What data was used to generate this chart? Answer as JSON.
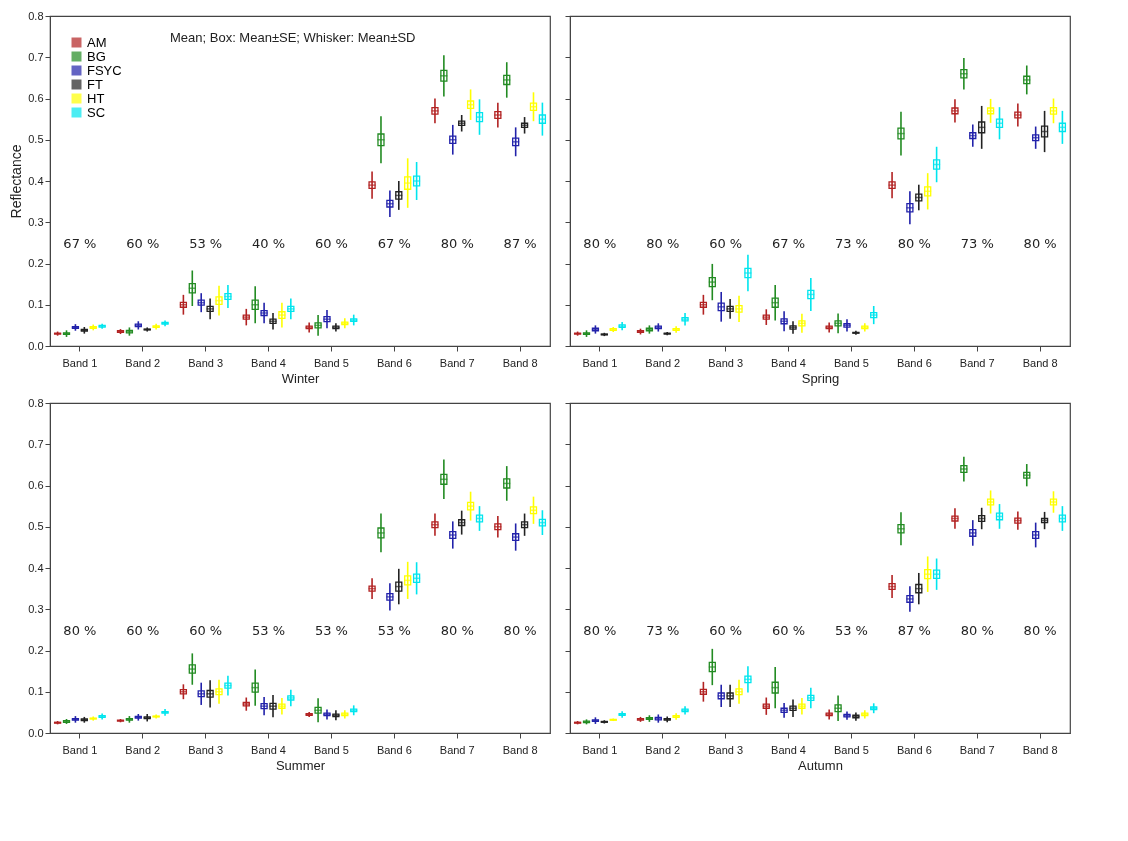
{
  "chart_data": [
    {
      "type": "box",
      "xlabel": "Winter",
      "ylabel": "Reflectance",
      "categories": [
        "Band 1",
        "Band 2",
        "Band 3",
        "Band 4",
        "Band 5",
        "Band 6",
        "Band 7",
        "Band 8"
      ],
      "ylim": [
        0,
        0.8
      ],
      "yticks": [
        {
          "value": 0,
          "label": "0.0"
        },
        0.1,
        0.2,
        0.3,
        0.4,
        0.5,
        0.6,
        0.7,
        0.8
      ],
      "grid": false,
      "legend": "top left",
      "subtitle": "Mean; Box: Mean±SE; Whisker: Mean±SD",
      "annotations": [
        "67 %",
        "60 %",
        "53 %",
        "40 %",
        "60 %",
        "67 %",
        "80 %",
        "87 %"
      ],
      "series": [
        {
          "name": "AM",
          "color": "#b22222",
          "boxes": [
            {
              "low": 0.025,
              "q1": 0.029,
              "median": 0.03,
              "q3": 0.031,
              "high": 0.035
            },
            {
              "low": 0.029,
              "q1": 0.033,
              "median": 0.035,
              "q3": 0.037,
              "high": 0.041
            },
            {
              "low": 0.076,
              "q1": 0.094,
              "median": 0.1,
              "q3": 0.106,
              "high": 0.124
            },
            {
              "low": 0.05,
              "q1": 0.065,
              "median": 0.07,
              "q3": 0.075,
              "high": 0.09
            },
            {
              "low": 0.033,
              "q1": 0.042,
              "median": 0.045,
              "q3": 0.048,
              "high": 0.057
            },
            {
              "low": 0.357,
              "q1": 0.382,
              "median": 0.39,
              "q3": 0.398,
              "high": 0.423
            },
            {
              "low": 0.54,
              "q1": 0.562,
              "median": 0.57,
              "q3": 0.578,
              "high": 0.6
            },
            {
              "low": 0.53,
              "q1": 0.552,
              "median": 0.56,
              "q3": 0.568,
              "high": 0.59
            }
          ]
        },
        {
          "name": "BG",
          "color": "#228b22",
          "boxes": [
            {
              "low": 0.022,
              "q1": 0.028,
              "median": 0.03,
              "q3": 0.032,
              "high": 0.038
            },
            {
              "low": 0.025,
              "q1": 0.032,
              "median": 0.035,
              "q3": 0.038,
              "high": 0.045
            },
            {
              "low": 0.097,
              "q1": 0.129,
              "median": 0.14,
              "q3": 0.151,
              "high": 0.183
            },
            {
              "low": 0.055,
              "q1": 0.089,
              "median": 0.1,
              "q3": 0.111,
              "high": 0.145
            },
            {
              "low": 0.025,
              "q1": 0.044,
              "median": 0.05,
              "q3": 0.056,
              "high": 0.075
            },
            {
              "low": 0.443,
              "q1": 0.486,
              "median": 0.5,
              "q3": 0.514,
              "high": 0.557
            },
            {
              "low": 0.605,
              "q1": 0.642,
              "median": 0.655,
              "q3": 0.668,
              "high": 0.705
            },
            {
              "low": 0.602,
              "q1": 0.634,
              "median": 0.645,
              "q3": 0.656,
              "high": 0.688
            }
          ]
        },
        {
          "name": "FSYC",
          "color": "#2222aa",
          "boxes": [
            {
              "low": 0.037,
              "q1": 0.043,
              "median": 0.045,
              "q3": 0.047,
              "high": 0.053
            },
            {
              "low": 0.04,
              "q1": 0.047,
              "median": 0.05,
              "q3": 0.053,
              "high": 0.06
            },
            {
              "low": 0.082,
              "q1": 0.099,
              "median": 0.105,
              "q3": 0.111,
              "high": 0.128
            },
            {
              "low": 0.055,
              "q1": 0.074,
              "median": 0.08,
              "q3": 0.086,
              "high": 0.105
            },
            {
              "low": 0.043,
              "q1": 0.059,
              "median": 0.065,
              "q3": 0.071,
              "high": 0.087
            },
            {
              "low": 0.313,
              "q1": 0.337,
              "median": 0.345,
              "q3": 0.353,
              "high": 0.377
            },
            {
              "low": 0.464,
              "q1": 0.491,
              "median": 0.5,
              "q3": 0.509,
              "high": 0.536
            },
            {
              "low": 0.46,
              "q1": 0.486,
              "median": 0.495,
              "q3": 0.504,
              "high": 0.53
            }
          ]
        },
        {
          "name": "FT",
          "color": "#222222",
          "boxes": [
            {
              "low": 0.03,
              "q1": 0.036,
              "median": 0.038,
              "q3": 0.04,
              "high": 0.046
            },
            {
              "low": 0.035,
              "q1": 0.039,
              "median": 0.04,
              "q3": 0.041,
              "high": 0.045
            },
            {
              "low": 0.065,
              "q1": 0.084,
              "median": 0.09,
              "q3": 0.096,
              "high": 0.115
            },
            {
              "low": 0.04,
              "q1": 0.055,
              "median": 0.06,
              "q3": 0.065,
              "high": 0.08
            },
            {
              "low": 0.035,
              "q1": 0.042,
              "median": 0.045,
              "q3": 0.048,
              "high": 0.055
            },
            {
              "low": 0.33,
              "q1": 0.356,
              "median": 0.365,
              "q3": 0.374,
              "high": 0.4
            },
            {
              "low": 0.52,
              "q1": 0.535,
              "median": 0.54,
              "q3": 0.545,
              "high": 0.56
            },
            {
              "low": 0.515,
              "q1": 0.53,
              "median": 0.535,
              "q3": 0.54,
              "high": 0.555
            }
          ]
        },
        {
          "name": "HT",
          "color": "#ffff00",
          "boxes": [
            {
              "low": 0.038,
              "q1": 0.043,
              "median": 0.045,
              "q3": 0.047,
              "high": 0.052
            },
            {
              "low": 0.04,
              "q1": 0.045,
              "median": 0.047,
              "q3": 0.049,
              "high": 0.054
            },
            {
              "low": 0.074,
              "q1": 0.101,
              "median": 0.11,
              "q3": 0.119,
              "high": 0.146
            },
            {
              "low": 0.045,
              "q1": 0.067,
              "median": 0.075,
              "q3": 0.083,
              "high": 0.105
            },
            {
              "low": 0.043,
              "q1": 0.052,
              "median": 0.055,
              "q3": 0.058,
              "high": 0.067
            },
            {
              "low": 0.335,
              "q1": 0.38,
              "median": 0.395,
              "q3": 0.41,
              "high": 0.455
            },
            {
              "low": 0.548,
              "q1": 0.576,
              "median": 0.585,
              "q3": 0.594,
              "high": 0.622
            },
            {
              "low": 0.545,
              "q1": 0.571,
              "median": 0.58,
              "q3": 0.589,
              "high": 0.615
            }
          ]
        },
        {
          "name": "SC",
          "color": "#00e5ee",
          "boxes": [
            {
              "low": 0.042,
              "q1": 0.046,
              "median": 0.048,
              "q3": 0.05,
              "high": 0.054
            },
            {
              "low": 0.048,
              "q1": 0.053,
              "median": 0.055,
              "q3": 0.057,
              "high": 0.062
            },
            {
              "low": 0.092,
              "q1": 0.113,
              "median": 0.12,
              "q3": 0.127,
              "high": 0.148
            },
            {
              "low": 0.065,
              "q1": 0.084,
              "median": 0.09,
              "q3": 0.096,
              "high": 0.115
            },
            {
              "low": 0.05,
              "q1": 0.06,
              "median": 0.063,
              "q3": 0.066,
              "high": 0.076
            },
            {
              "low": 0.354,
              "q1": 0.388,
              "median": 0.4,
              "q3": 0.412,
              "high": 0.446
            },
            {
              "low": 0.512,
              "q1": 0.544,
              "median": 0.555,
              "q3": 0.566,
              "high": 0.598
            },
            {
              "low": 0.51,
              "q1": 0.54,
              "median": 0.55,
              "q3": 0.56,
              "high": 0.59
            }
          ]
        }
      ]
    },
    {
      "type": "box",
      "xlabel": "Spring",
      "categories": [
        "Band 1",
        "Band 2",
        "Band 3",
        "Band 4",
        "Band 5",
        "Band 6",
        "Band 7",
        "Band 8"
      ],
      "ylim": [
        0,
        0.8
      ],
      "yticks": [
        0,
        0.1,
        0.2,
        0.3,
        0.4,
        0.5,
        0.6,
        0.7,
        0.8
      ],
      "grid": false,
      "tick_labels": "x",
      "annotations": [
        "80 %",
        "80 %",
        "60 %",
        "67 %",
        "73 %",
        "80 %",
        "73 %",
        "80 %"
      ],
      "series": [
        {
          "name": "AM",
          "color": "#b22222",
          "boxes": [
            {
              "low": 0.025,
              "q1": 0.029,
              "median": 0.03,
              "q3": 0.031,
              "high": 0.035
            },
            {
              "low": 0.028,
              "q1": 0.033,
              "median": 0.035,
              "q3": 0.037,
              "high": 0.042
            },
            {
              "low": 0.076,
              "q1": 0.094,
              "median": 0.1,
              "q3": 0.106,
              "high": 0.124
            },
            {
              "low": 0.051,
              "q1": 0.065,
              "median": 0.07,
              "q3": 0.075,
              "high": 0.089
            },
            {
              "low": 0.033,
              "q1": 0.042,
              "median": 0.045,
              "q3": 0.048,
              "high": 0.057
            },
            {
              "low": 0.358,
              "q1": 0.382,
              "median": 0.39,
              "q3": 0.398,
              "high": 0.422
            },
            {
              "low": 0.542,
              "q1": 0.563,
              "median": 0.57,
              "q3": 0.577,
              "high": 0.598
            },
            {
              "low": 0.532,
              "q1": 0.553,
              "median": 0.56,
              "q3": 0.567,
              "high": 0.588
            }
          ]
        },
        {
          "name": "BG",
          "color": "#228b22",
          "boxes": [
            {
              "low": 0.022,
              "q1": 0.028,
              "median": 0.03,
              "q3": 0.032,
              "high": 0.038
            },
            {
              "low": 0.03,
              "q1": 0.037,
              "median": 0.04,
              "q3": 0.043,
              "high": 0.05
            },
            {
              "low": 0.111,
              "q1": 0.144,
              "median": 0.155,
              "q3": 0.166,
              "high": 0.199
            },
            {
              "low": 0.062,
              "q1": 0.094,
              "median": 0.105,
              "q3": 0.116,
              "high": 0.148
            },
            {
              "low": 0.031,
              "q1": 0.049,
              "median": 0.055,
              "q3": 0.061,
              "high": 0.079
            },
            {
              "low": 0.462,
              "q1": 0.502,
              "median": 0.515,
              "q3": 0.528,
              "high": 0.568
            },
            {
              "low": 0.622,
              "q1": 0.65,
              "median": 0.66,
              "q3": 0.67,
              "high": 0.698
            },
            {
              "low": 0.61,
              "q1": 0.636,
              "median": 0.645,
              "q3": 0.654,
              "high": 0.68
            }
          ]
        },
        {
          "name": "FSYC",
          "color": "#2222aa",
          "boxes": [
            {
              "low": 0.03,
              "q1": 0.037,
              "median": 0.04,
              "q3": 0.043,
              "high": 0.05
            },
            {
              "low": 0.035,
              "q1": 0.042,
              "median": 0.045,
              "q3": 0.048,
              "high": 0.055
            },
            {
              "low": 0.059,
              "q1": 0.086,
              "median": 0.095,
              "q3": 0.104,
              "high": 0.131
            },
            {
              "low": 0.036,
              "q1": 0.054,
              "median": 0.06,
              "q3": 0.066,
              "high": 0.084
            },
            {
              "low": 0.035,
              "q1": 0.046,
              "median": 0.05,
              "q3": 0.054,
              "high": 0.065
            },
            {
              "low": 0.295,
              "q1": 0.325,
              "median": 0.335,
              "q3": 0.345,
              "high": 0.375
            },
            {
              "low": 0.483,
              "q1": 0.503,
              "median": 0.51,
              "q3": 0.517,
              "high": 0.537
            },
            {
              "low": 0.478,
              "q1": 0.498,
              "median": 0.505,
              "q3": 0.512,
              "high": 0.532
            }
          ]
        },
        {
          "name": "FT",
          "color": "#222222",
          "boxes": [
            {
              "low": 0.024,
              "q1": 0.027,
              "median": 0.028,
              "q3": 0.029,
              "high": 0.032
            },
            {
              "low": 0.026,
              "q1": 0.029,
              "median": 0.03,
              "q3": 0.031,
              "high": 0.034
            },
            {
              "low": 0.066,
              "q1": 0.084,
              "median": 0.09,
              "q3": 0.096,
              "high": 0.114
            },
            {
              "low": 0.03,
              "q1": 0.041,
              "median": 0.045,
              "q3": 0.049,
              "high": 0.06
            },
            {
              "low": 0.027,
              "q1": 0.031,
              "median": 0.032,
              "q3": 0.033,
              "high": 0.037
            },
            {
              "low": 0.329,
              "q1": 0.352,
              "median": 0.36,
              "q3": 0.368,
              "high": 0.391
            },
            {
              "low": 0.478,
              "q1": 0.517,
              "median": 0.53,
              "q3": 0.543,
              "high": 0.582
            },
            {
              "low": 0.47,
              "q1": 0.507,
              "median": 0.52,
              "q3": 0.533,
              "high": 0.57
            }
          ]
        },
        {
          "name": "HT",
          "color": "#ffff00",
          "boxes": [
            {
              "low": 0.034,
              "q1": 0.038,
              "median": 0.04,
              "q3": 0.042,
              "high": 0.046
            },
            {
              "low": 0.032,
              "q1": 0.038,
              "median": 0.04,
              "q3": 0.042,
              "high": 0.048
            },
            {
              "low": 0.058,
              "q1": 0.082,
              "median": 0.09,
              "q3": 0.098,
              "high": 0.122
            },
            {
              "low": 0.032,
              "q1": 0.049,
              "median": 0.055,
              "q3": 0.061,
              "high": 0.078
            },
            {
              "low": 0.035,
              "q1": 0.042,
              "median": 0.045,
              "q3": 0.048,
              "high": 0.055
            },
            {
              "low": 0.331,
              "q1": 0.364,
              "median": 0.375,
              "q3": 0.386,
              "high": 0.419
            },
            {
              "low": 0.541,
              "q1": 0.563,
              "median": 0.57,
              "q3": 0.577,
              "high": 0.599
            },
            {
              "low": 0.54,
              "q1": 0.562,
              "median": 0.57,
              "q3": 0.578,
              "high": 0.6
            }
          ]
        },
        {
          "name": "SC",
          "color": "#00e5ee",
          "boxes": [
            {
              "low": 0.038,
              "q1": 0.045,
              "median": 0.048,
              "q3": 0.051,
              "high": 0.058
            },
            {
              "low": 0.05,
              "q1": 0.061,
              "median": 0.065,
              "q3": 0.069,
              "high": 0.08
            },
            {
              "low": 0.133,
              "q1": 0.166,
              "median": 0.177,
              "q3": 0.188,
              "high": 0.221
            },
            {
              "low": 0.085,
              "q1": 0.115,
              "median": 0.125,
              "q3": 0.135,
              "high": 0.165
            },
            {
              "low": 0.053,
              "q1": 0.069,
              "median": 0.075,
              "q3": 0.081,
              "high": 0.097
            },
            {
              "low": 0.397,
              "q1": 0.429,
              "median": 0.44,
              "q3": 0.451,
              "high": 0.483
            },
            {
              "low": 0.501,
              "q1": 0.53,
              "median": 0.54,
              "q3": 0.55,
              "high": 0.579
            },
            {
              "low": 0.49,
              "q1": 0.52,
              "median": 0.53,
              "q3": 0.54,
              "high": 0.57
            }
          ]
        }
      ]
    },
    {
      "type": "box",
      "xlabel": "Summer",
      "categories": [
        "Band 1",
        "Band 2",
        "Band 3",
        "Band 4",
        "Band 5",
        "Band 6",
        "Band 7",
        "Band 8"
      ],
      "ylim": [
        0,
        0.8
      ],
      "yticks": [
        {
          "value": 0,
          "label": "0.0"
        },
        0.1,
        0.2,
        0.3,
        0.4,
        0.5,
        0.6,
        0.7,
        0.8
      ],
      "grid": false,
      "annotations": [
        "80 %",
        "60 %",
        "60 %",
        "53 %",
        "53 %",
        "53 %",
        "80 %",
        "80 %"
      ],
      "series": [
        {
          "name": "AM",
          "color": "#b22222",
          "boxes": [
            {
              "low": 0.021,
              "q1": 0.024,
              "median": 0.025,
              "q3": 0.026,
              "high": 0.029
            },
            {
              "low": 0.026,
              "q1": 0.029,
              "median": 0.03,
              "q3": 0.031,
              "high": 0.034
            },
            {
              "low": 0.082,
              "q1": 0.095,
              "median": 0.1,
              "q3": 0.105,
              "high": 0.118
            },
            {
              "low": 0.054,
              "q1": 0.066,
              "median": 0.07,
              "q3": 0.074,
              "high": 0.086
            },
            {
              "low": 0.039,
              "q1": 0.043,
              "median": 0.045,
              "q3": 0.047,
              "high": 0.051
            },
            {
              "low": 0.325,
              "q1": 0.344,
              "median": 0.35,
              "q3": 0.356,
              "high": 0.375
            },
            {
              "low": 0.478,
              "q1": 0.498,
              "median": 0.505,
              "q3": 0.512,
              "high": 0.532
            },
            {
              "low": 0.474,
              "q1": 0.493,
              "median": 0.5,
              "q3": 0.507,
              "high": 0.526
            }
          ]
        },
        {
          "name": "BG",
          "color": "#228b22",
          "boxes": [
            {
              "low": 0.022,
              "q1": 0.026,
              "median": 0.028,
              "q3": 0.03,
              "high": 0.034
            },
            {
              "low": 0.025,
              "q1": 0.031,
              "median": 0.033,
              "q3": 0.035,
              "high": 0.041
            },
            {
              "low": 0.117,
              "q1": 0.145,
              "median": 0.155,
              "q3": 0.165,
              "high": 0.193
            },
            {
              "low": 0.066,
              "q1": 0.099,
              "median": 0.11,
              "q3": 0.121,
              "high": 0.154
            },
            {
              "low": 0.026,
              "q1": 0.048,
              "median": 0.055,
              "q3": 0.062,
              "high": 0.084
            },
            {
              "low": 0.438,
              "q1": 0.473,
              "median": 0.485,
              "q3": 0.497,
              "high": 0.532
            },
            {
              "low": 0.567,
              "q1": 0.603,
              "median": 0.615,
              "q3": 0.627,
              "high": 0.663
            },
            {
              "low": 0.563,
              "q1": 0.594,
              "median": 0.605,
              "q3": 0.616,
              "high": 0.647
            }
          ]
        },
        {
          "name": "FSYC",
          "color": "#2222aa",
          "boxes": [
            {
              "low": 0.025,
              "q1": 0.031,
              "median": 0.033,
              "q3": 0.035,
              "high": 0.041
            },
            {
              "low": 0.03,
              "q1": 0.036,
              "median": 0.038,
              "q3": 0.04,
              "high": 0.046
            },
            {
              "low": 0.068,
              "q1": 0.088,
              "median": 0.095,
              "q3": 0.102,
              "high": 0.122
            },
            {
              "low": 0.043,
              "q1": 0.059,
              "median": 0.065,
              "q3": 0.071,
              "high": 0.087
            },
            {
              "low": 0.033,
              "q1": 0.042,
              "median": 0.045,
              "q3": 0.048,
              "high": 0.057
            },
            {
              "low": 0.297,
              "q1": 0.322,
              "median": 0.33,
              "q3": 0.338,
              "high": 0.363
            },
            {
              "low": 0.447,
              "q1": 0.472,
              "median": 0.48,
              "q3": 0.488,
              "high": 0.513
            },
            {
              "low": 0.442,
              "q1": 0.467,
              "median": 0.475,
              "q3": 0.483,
              "high": 0.508
            }
          ]
        },
        {
          "name": "FT",
          "color": "#222222",
          "boxes": [
            {
              "low": 0.025,
              "q1": 0.03,
              "median": 0.032,
              "q3": 0.034,
              "high": 0.039
            },
            {
              "low": 0.028,
              "q1": 0.035,
              "median": 0.037,
              "q3": 0.039,
              "high": 0.046
            },
            {
              "low": 0.062,
              "q1": 0.087,
              "median": 0.095,
              "q3": 0.103,
              "high": 0.128
            },
            {
              "low": 0.038,
              "q1": 0.058,
              "median": 0.065,
              "q3": 0.072,
              "high": 0.092
            },
            {
              "low": 0.031,
              "q1": 0.04,
              "median": 0.043,
              "q3": 0.046,
              "high": 0.055
            },
            {
              "low": 0.312,
              "q1": 0.344,
              "median": 0.355,
              "q3": 0.366,
              "high": 0.398
            },
            {
              "low": 0.481,
              "q1": 0.503,
              "median": 0.51,
              "q3": 0.517,
              "high": 0.539
            },
            {
              "low": 0.478,
              "q1": 0.498,
              "median": 0.505,
              "q3": 0.512,
              "high": 0.532
            }
          ]
        },
        {
          "name": "HT",
          "color": "#ffff00",
          "boxes": [
            {
              "low": 0.03,
              "q1": 0.034,
              "median": 0.035,
              "q3": 0.036,
              "high": 0.04
            },
            {
              "low": 0.035,
              "q1": 0.039,
              "median": 0.04,
              "q3": 0.041,
              "high": 0.045
            },
            {
              "low": 0.071,
              "q1": 0.093,
              "median": 0.1,
              "q3": 0.107,
              "high": 0.129
            },
            {
              "low": 0.045,
              "q1": 0.06,
              "median": 0.065,
              "q3": 0.07,
              "high": 0.085
            },
            {
              "low": 0.035,
              "q1": 0.042,
              "median": 0.045,
              "q3": 0.048,
              "high": 0.055
            },
            {
              "low": 0.325,
              "q1": 0.359,
              "median": 0.37,
              "q3": 0.381,
              "high": 0.415
            },
            {
              "low": 0.515,
              "q1": 0.541,
              "median": 0.55,
              "q3": 0.559,
              "high": 0.585
            },
            {
              "low": 0.507,
              "q1": 0.532,
              "median": 0.54,
              "q3": 0.548,
              "high": 0.573
            }
          ]
        },
        {
          "name": "SC",
          "color": "#00e5ee",
          "boxes": [
            {
              "low": 0.033,
              "q1": 0.038,
              "median": 0.04,
              "q3": 0.042,
              "high": 0.047
            },
            {
              "low": 0.042,
              "q1": 0.048,
              "median": 0.05,
              "q3": 0.052,
              "high": 0.058
            },
            {
              "low": 0.091,
              "q1": 0.109,
              "median": 0.115,
              "q3": 0.121,
              "high": 0.139
            },
            {
              "low": 0.065,
              "q1": 0.08,
              "median": 0.085,
              "q3": 0.09,
              "high": 0.105
            },
            {
              "low": 0.043,
              "q1": 0.052,
              "median": 0.055,
              "q3": 0.058,
              "high": 0.067
            },
            {
              "low": 0.336,
              "q1": 0.365,
              "median": 0.375,
              "q3": 0.385,
              "high": 0.414
            },
            {
              "low": 0.49,
              "q1": 0.512,
              "median": 0.52,
              "q3": 0.528,
              "high": 0.55
            },
            {
              "low": 0.48,
              "q1": 0.502,
              "median": 0.51,
              "q3": 0.518,
              "high": 0.54
            }
          ]
        }
      ]
    },
    {
      "type": "box",
      "xlabel": "Autumn",
      "categories": [
        "Band 1",
        "Band 2",
        "Band 3",
        "Band 4",
        "Band 5",
        "Band 6",
        "Band 7",
        "Band 8"
      ],
      "ylim": [
        0,
        0.8
      ],
      "yticks": [
        0,
        0.1,
        0.2,
        0.3,
        0.4,
        0.5,
        0.6,
        0.7,
        0.8
      ],
      "grid": false,
      "tick_labels": "x",
      "annotations": [
        "80 %",
        "73 %",
        "60 %",
        "60 %",
        "53 %",
        "87 %",
        "80 %",
        "80 %"
      ],
      "series": [
        {
          "name": "AM",
          "color": "#b22222",
          "boxes": [
            {
              "low": 0.021,
              "q1": 0.024,
              "median": 0.025,
              "q3": 0.026,
              "high": 0.029
            },
            {
              "low": 0.027,
              "q1": 0.031,
              "median": 0.033,
              "q3": 0.035,
              "high": 0.039
            },
            {
              "low": 0.076,
              "q1": 0.094,
              "median": 0.1,
              "q3": 0.106,
              "high": 0.124
            },
            {
              "low": 0.044,
              "q1": 0.06,
              "median": 0.065,
              "q3": 0.07,
              "high": 0.086
            },
            {
              "low": 0.033,
              "q1": 0.042,
              "median": 0.045,
              "q3": 0.048,
              "high": 0.057
            },
            {
              "low": 0.327,
              "q1": 0.348,
              "median": 0.355,
              "q3": 0.362,
              "high": 0.383
            },
            {
              "low": 0.495,
              "q1": 0.514,
              "median": 0.52,
              "q3": 0.526,
              "high": 0.545
            },
            {
              "low": 0.493,
              "q1": 0.509,
              "median": 0.515,
              "q3": 0.521,
              "high": 0.537
            }
          ]
        },
        {
          "name": "BG",
          "color": "#228b22",
          "boxes": [
            {
              "low": 0.021,
              "q1": 0.025,
              "median": 0.027,
              "q3": 0.029,
              "high": 0.033
            },
            {
              "low": 0.027,
              "q1": 0.033,
              "median": 0.035,
              "q3": 0.037,
              "high": 0.043
            },
            {
              "low": 0.116,
              "q1": 0.149,
              "median": 0.16,
              "q3": 0.171,
              "high": 0.204
            },
            {
              "low": 0.06,
              "q1": 0.097,
              "median": 0.11,
              "q3": 0.123,
              "high": 0.16
            },
            {
              "low": 0.029,
              "q1": 0.052,
              "median": 0.06,
              "q3": 0.068,
              "high": 0.091
            },
            {
              "low": 0.455,
              "q1": 0.485,
              "median": 0.495,
              "q3": 0.505,
              "high": 0.535
            },
            {
              "low": 0.61,
              "q1": 0.632,
              "median": 0.64,
              "q3": 0.648,
              "high": 0.67
            },
            {
              "low": 0.598,
              "q1": 0.618,
              "median": 0.625,
              "q3": 0.632,
              "high": 0.652
            }
          ]
        },
        {
          "name": "FSYC",
          "color": "#2222aa",
          "boxes": [
            {
              "low": 0.022,
              "q1": 0.028,
              "median": 0.03,
              "q3": 0.032,
              "high": 0.038
            },
            {
              "low": 0.025,
              "q1": 0.032,
              "median": 0.035,
              "q3": 0.038,
              "high": 0.045
            },
            {
              "low": 0.063,
              "q1": 0.083,
              "median": 0.09,
              "q3": 0.097,
              "high": 0.117
            },
            {
              "low": 0.037,
              "q1": 0.05,
              "median": 0.055,
              "q3": 0.06,
              "high": 0.073
            },
            {
              "low": 0.032,
              "q1": 0.039,
              "median": 0.042,
              "q3": 0.045,
              "high": 0.052
            },
            {
              "low": 0.294,
              "q1": 0.317,
              "median": 0.325,
              "q3": 0.333,
              "high": 0.356
            },
            {
              "low": 0.454,
              "q1": 0.477,
              "median": 0.485,
              "q3": 0.493,
              "high": 0.516
            },
            {
              "low": 0.45,
              "q1": 0.472,
              "median": 0.48,
              "q3": 0.488,
              "high": 0.51
            }
          ]
        },
        {
          "name": "FT",
          "color": "#222222",
          "boxes": [
            {
              "low": 0.023,
              "q1": 0.026,
              "median": 0.027,
              "q3": 0.028,
              "high": 0.031
            },
            {
              "low": 0.026,
              "q1": 0.031,
              "median": 0.033,
              "q3": 0.035,
              "high": 0.04
            },
            {
              "low": 0.063,
              "q1": 0.083,
              "median": 0.09,
              "q3": 0.097,
              "high": 0.117
            },
            {
              "low": 0.039,
              "q1": 0.055,
              "median": 0.06,
              "q3": 0.065,
              "high": 0.081
            },
            {
              "low": 0.03,
              "q1": 0.037,
              "median": 0.04,
              "q3": 0.043,
              "high": 0.05
            },
            {
              "low": 0.312,
              "q1": 0.34,
              "median": 0.35,
              "q3": 0.36,
              "high": 0.388
            },
            {
              "low": 0.494,
              "q1": 0.513,
              "median": 0.52,
              "q3": 0.527,
              "high": 0.546
            },
            {
              "low": 0.494,
              "q1": 0.51,
              "median": 0.515,
              "q3": 0.52,
              "high": 0.536
            }
          ]
        },
        {
          "name": "HT",
          "color": "#ffff00",
          "boxes": [
            {
              "low": 0.029,
              "q1": 0.031,
              "median": 0.032,
              "q3": 0.033,
              "high": 0.035
            },
            {
              "low": 0.032,
              "q1": 0.038,
              "median": 0.04,
              "q3": 0.042,
              "high": 0.048
            },
            {
              "low": 0.071,
              "q1": 0.093,
              "median": 0.1,
              "q3": 0.107,
              "high": 0.129
            },
            {
              "low": 0.045,
              "q1": 0.06,
              "median": 0.065,
              "q3": 0.07,
              "high": 0.085
            },
            {
              "low": 0.035,
              "q1": 0.042,
              "median": 0.045,
              "q3": 0.048,
              "high": 0.055
            },
            {
              "low": 0.342,
              "q1": 0.374,
              "median": 0.385,
              "q3": 0.396,
              "high": 0.428
            },
            {
              "low": 0.532,
              "q1": 0.553,
              "median": 0.56,
              "q3": 0.567,
              "high": 0.588
            },
            {
              "low": 0.534,
              "q1": 0.553,
              "median": 0.56,
              "q3": 0.567,
              "high": 0.586
            }
          ]
        },
        {
          "name": "SC",
          "color": "#00e5ee",
          "boxes": [
            {
              "low": 0.037,
              "q1": 0.043,
              "median": 0.045,
              "q3": 0.047,
              "high": 0.053
            },
            {
              "low": 0.045,
              "q1": 0.052,
              "median": 0.055,
              "q3": 0.058,
              "high": 0.065
            },
            {
              "low": 0.098,
              "q1": 0.122,
              "median": 0.13,
              "q3": 0.138,
              "high": 0.162
            },
            {
              "low": 0.06,
              "q1": 0.079,
              "median": 0.085,
              "q3": 0.091,
              "high": 0.11
            },
            {
              "low": 0.048,
              "q1": 0.057,
              "median": 0.06,
              "q3": 0.063,
              "high": 0.072
            },
            {
              "low": 0.347,
              "q1": 0.375,
              "median": 0.385,
              "q3": 0.395,
              "high": 0.423
            },
            {
              "low": 0.495,
              "q1": 0.517,
              "median": 0.525,
              "q3": 0.533,
              "high": 0.555
            },
            {
              "low": 0.49,
              "q1": 0.512,
              "median": 0.52,
              "q3": 0.528,
              "high": 0.55
            }
          ]
        }
      ]
    }
  ]
}
